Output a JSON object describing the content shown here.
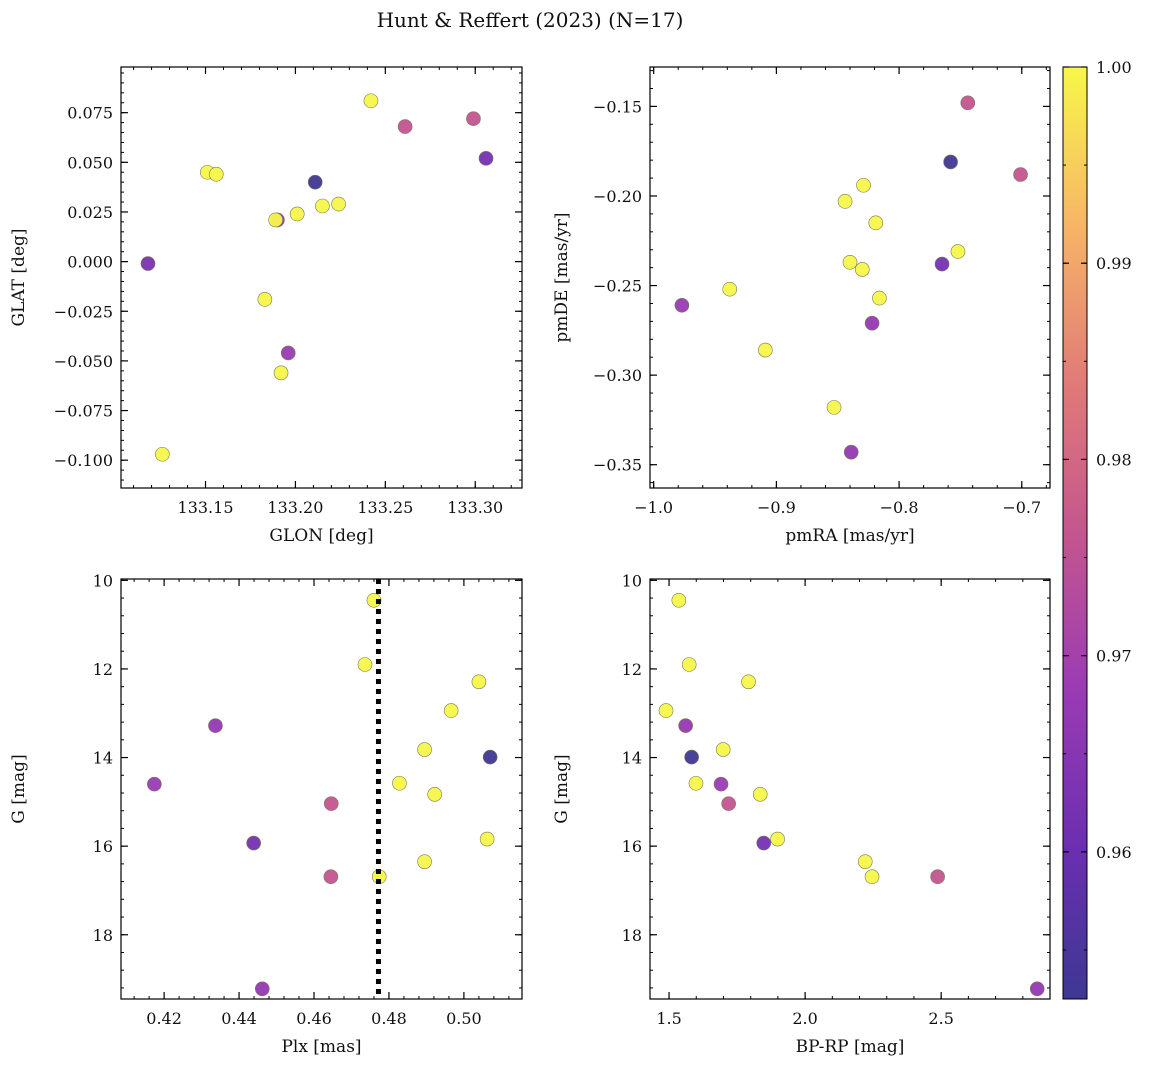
{
  "figure": {
    "title": "Hunt & Reffert (2023) (N=17)"
  },
  "colorbar": {
    "cmap": "plasma",
    "range": [
      0.9525,
      1.0
    ],
    "ticks": [
      0.96,
      0.97,
      0.98,
      0.99,
      1.0
    ],
    "tick_labels": [
      "0.96",
      "0.97",
      "0.98",
      "0.99",
      "1.00"
    ]
  },
  "chart_data": [
    {
      "type": "scatter",
      "title": "",
      "xlabel": "GLON [deg]",
      "ylabel": "GLAT [deg]",
      "xlim": [
        133.103,
        133.326
      ],
      "ylim": [
        -0.114,
        0.098
      ],
      "xticks": [
        133.15,
        133.2,
        133.25,
        133.3
      ],
      "xtick_labels": [
        "133.15",
        "133.20",
        "133.25",
        "133.30"
      ],
      "yticks": [
        -0.1,
        -0.075,
        -0.05,
        -0.025,
        0.0,
        0.025,
        0.05,
        0.075
      ],
      "ytick_labels": [
        "−0.100",
        "−0.075",
        "−0.050",
        "−0.025",
        "0.000",
        "0.025",
        "0.050",
        "0.075"
      ],
      "x": [
        133.118,
        133.126,
        133.151,
        133.156,
        133.183,
        133.19,
        133.189,
        133.192,
        133.196,
        133.201,
        133.211,
        133.215,
        133.224,
        133.242,
        133.261,
        133.299,
        133.306
      ],
      "y": [
        -0.001,
        -0.097,
        0.045,
        0.044,
        -0.019,
        0.021,
        0.021,
        -0.056,
        -0.046,
        0.024,
        0.04,
        0.028,
        0.029,
        0.081,
        0.068,
        0.072,
        0.052
      ],
      "c": [
        0.963,
        1.0,
        1.0,
        1.0,
        1.0,
        0.967,
        1.0,
        1.0,
        0.968,
        1.0,
        0.953,
        1.0,
        1.0,
        1.0,
        0.976,
        0.976,
        0.962
      ]
    },
    {
      "type": "scatter",
      "title": "",
      "xlabel": "pmRA [mas/yr]",
      "ylabel": "pmDE [mas/yr]",
      "xlim": [
        -1.003,
        -0.677
      ],
      "ylim": [
        -0.363,
        -0.128
      ],
      "xticks": [
        -1.0,
        -0.9,
        -0.8,
        -0.7
      ],
      "xtick_labels": [
        "−1.0",
        "−0.9",
        "−0.8",
        "−0.7"
      ],
      "yticks": [
        -0.35,
        -0.3,
        -0.25,
        -0.2,
        -0.15
      ],
      "ytick_labels": [
        "−0.35",
        "−0.30",
        "−0.25",
        "−0.20",
        "−0.15"
      ],
      "x": [
        -0.977,
        -0.938,
        -0.909,
        -0.853,
        -0.844,
        -0.84,
        -0.839,
        -0.83,
        -0.829,
        -0.822,
        -0.819,
        -0.816,
        -0.765,
        -0.758,
        -0.752,
        -0.744,
        -0.701
      ],
      "y": [
        -0.261,
        -0.252,
        -0.286,
        -0.318,
        -0.203,
        -0.237,
        -0.343,
        -0.241,
        -0.194,
        -0.271,
        -0.215,
        -0.257,
        -0.238,
        -0.181,
        -0.231,
        -0.148,
        -0.188
      ],
      "c": [
        0.968,
        1.0,
        1.0,
        1.0,
        1.0,
        1.0,
        0.967,
        1.0,
        1.0,
        0.967,
        1.0,
        1.0,
        0.962,
        0.953,
        1.0,
        0.976,
        0.976
      ]
    },
    {
      "type": "scatter",
      "title": "",
      "xlabel": "Plx [mas]",
      "ylabel": "G [mag]",
      "xlim": [
        0.4085,
        0.5155
      ],
      "ylim": [
        19.45,
        9.97
      ],
      "y_inverted": true,
      "xticks": [
        0.42,
        0.44,
        0.46,
        0.48,
        0.5
      ],
      "xtick_labels": [
        "0.42",
        "0.44",
        "0.46",
        "0.48",
        "0.50"
      ],
      "yticks": [
        10,
        12,
        14,
        16,
        18
      ],
      "ytick_labels": [
        "10",
        "12",
        "14",
        "16",
        "18"
      ],
      "vline": {
        "x": 0.4772,
        "style": "dotted"
      },
      "x": [
        0.4174,
        0.4337,
        0.4439,
        0.4462,
        0.4646,
        0.4645,
        0.4736,
        0.476,
        0.4774,
        0.4828,
        0.4895,
        0.4895,
        0.4922,
        0.4966,
        0.504,
        0.5062,
        0.507
      ],
      "y": [
        14.6,
        13.28,
        15.93,
        19.22,
        15.04,
        16.69,
        11.9,
        10.45,
        16.69,
        14.58,
        13.82,
        16.35,
        14.83,
        12.94,
        12.29,
        15.84,
        13.99
      ],
      "c": [
        0.968,
        0.967,
        0.962,
        0.967,
        0.976,
        0.976,
        1.0,
        1.0,
        1.0,
        1.0,
        1.0,
        1.0,
        1.0,
        1.0,
        1.0,
        1.0,
        0.953
      ]
    },
    {
      "type": "scatter",
      "title": "",
      "xlabel": "BP-RP [mag]",
      "ylabel": "G [mag]",
      "xlim": [
        1.43,
        2.9
      ],
      "ylim": [
        19.45,
        9.97
      ],
      "y_inverted": true,
      "xticks": [
        1.5,
        2.0,
        2.5
      ],
      "xtick_labels": [
        "1.5",
        "2.0",
        "2.5"
      ],
      "yticks": [
        10,
        12,
        14,
        16,
        18
      ],
      "ytick_labels": [
        "10",
        "12",
        "14",
        "16",
        "18"
      ],
      "x": [
        1.489,
        1.536,
        1.561,
        1.574,
        1.583,
        1.599,
        1.691,
        1.699,
        1.719,
        1.792,
        1.835,
        1.848,
        1.899,
        2.221,
        2.246,
        2.487,
        2.853
      ],
      "y": [
        12.94,
        10.45,
        13.28,
        11.9,
        13.99,
        14.58,
        14.6,
        13.82,
        15.04,
        12.29,
        14.83,
        15.93,
        15.84,
        16.35,
        16.69,
        16.69,
        19.22
      ],
      "c": [
        1.0,
        1.0,
        0.967,
        1.0,
        0.953,
        1.0,
        0.968,
        1.0,
        0.976,
        1.0,
        1.0,
        0.962,
        1.0,
        1.0,
        1.0,
        0.976,
        0.967
      ]
    }
  ]
}
